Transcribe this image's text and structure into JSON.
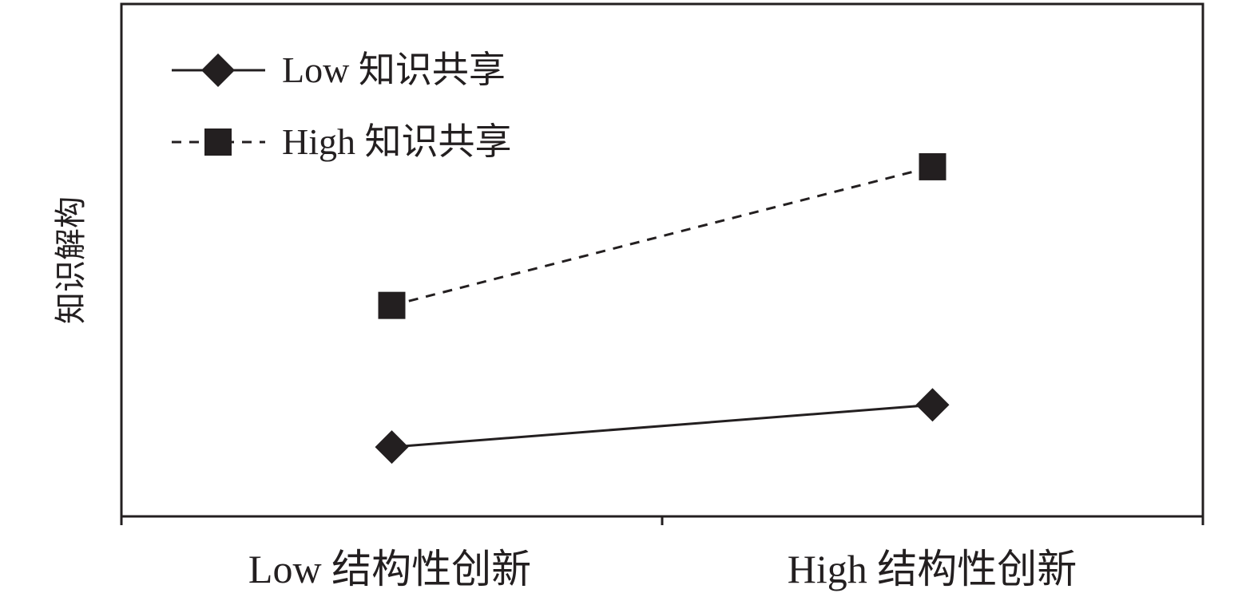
{
  "chart_data": {
    "type": "line",
    "title": "",
    "xlabel": "",
    "ylabel": "知识解构",
    "categories": [
      "Low 结构性创新",
      "High 结构性创新"
    ],
    "series": [
      {
        "name": "Low 知识共享",
        "values": [
          1.15,
          1.85
        ],
        "marker": "diamond",
        "line_style": "solid"
      },
      {
        "name": "High 知识共享",
        "values": [
          3.5,
          5.8
        ],
        "marker": "square",
        "line_style": "dashed"
      }
    ],
    "ylim": [
      0,
      8.5
    ],
    "y_ticks_shown": false,
    "grid": false,
    "legend_position": "top-left",
    "colors": {
      "ink": "#231f20",
      "background": "#ffffff"
    }
  }
}
